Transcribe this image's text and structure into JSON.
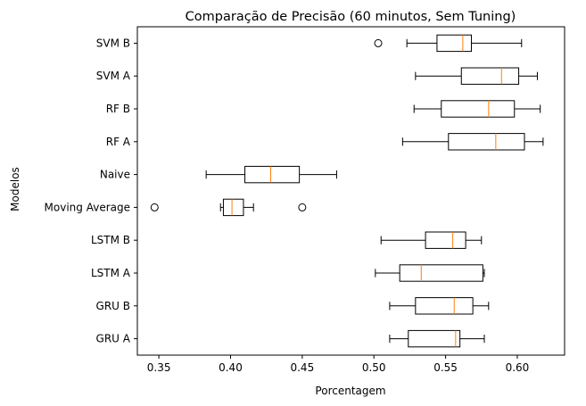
{
  "chart_data": {
    "type": "boxplot",
    "orientation": "horizontal",
    "title": "Comparação de Precisão (60 minutos, Sem Tuning)",
    "xlabel": "Porcentagem",
    "ylabel": "Modelos",
    "xlim": [
      0.335,
      0.633
    ],
    "xticks": [
      0.35,
      0.4,
      0.45,
      0.5,
      0.55,
      0.6
    ],
    "xtick_labels": [
      "0.35",
      "0.40",
      "0.45",
      "0.50",
      "0.55",
      "0.60"
    ],
    "grid": false,
    "box_color": "#000000",
    "median_color": "#ff7f0e",
    "categories": [
      "GRU A",
      "GRU B",
      "LSTM A",
      "LSTM B",
      "Moving Average",
      "Naive",
      "RF A",
      "RF B",
      "SVM A",
      "SVM B"
    ],
    "boxes": [
      {
        "label": "GRU A",
        "whisker_low": 0.511,
        "q1": 0.524,
        "median": 0.557,
        "q3": 0.56,
        "whisker_high": 0.577,
        "outliers": []
      },
      {
        "label": "GRU B",
        "whisker_low": 0.511,
        "q1": 0.529,
        "median": 0.556,
        "q3": 0.569,
        "whisker_high": 0.58,
        "outliers": []
      },
      {
        "label": "LSTM A",
        "whisker_low": 0.501,
        "q1": 0.518,
        "median": 0.533,
        "q3": 0.576,
        "whisker_high": 0.577,
        "outliers": []
      },
      {
        "label": "LSTM B",
        "whisker_low": 0.505,
        "q1": 0.536,
        "median": 0.555,
        "q3": 0.564,
        "whisker_high": 0.575,
        "outliers": []
      },
      {
        "label": "Moving Average",
        "whisker_low": 0.393,
        "q1": 0.395,
        "median": 0.401,
        "q3": 0.409,
        "whisker_high": 0.416,
        "outliers": [
          0.347,
          0.45
        ]
      },
      {
        "label": "Naive",
        "whisker_low": 0.383,
        "q1": 0.41,
        "median": 0.428,
        "q3": 0.448,
        "whisker_high": 0.474,
        "outliers": []
      },
      {
        "label": "RF A",
        "whisker_low": 0.52,
        "q1": 0.552,
        "median": 0.585,
        "q3": 0.605,
        "whisker_high": 0.618,
        "outliers": []
      },
      {
        "label": "RF B",
        "whisker_low": 0.528,
        "q1": 0.547,
        "median": 0.58,
        "q3": 0.598,
        "whisker_high": 0.616,
        "outliers": []
      },
      {
        "label": "SVM A",
        "whisker_low": 0.529,
        "q1": 0.561,
        "median": 0.589,
        "q3": 0.601,
        "whisker_high": 0.614,
        "outliers": []
      },
      {
        "label": "SVM B",
        "whisker_low": 0.523,
        "q1": 0.544,
        "median": 0.562,
        "q3": 0.568,
        "whisker_high": 0.603,
        "outliers": [
          0.503
        ]
      }
    ]
  }
}
